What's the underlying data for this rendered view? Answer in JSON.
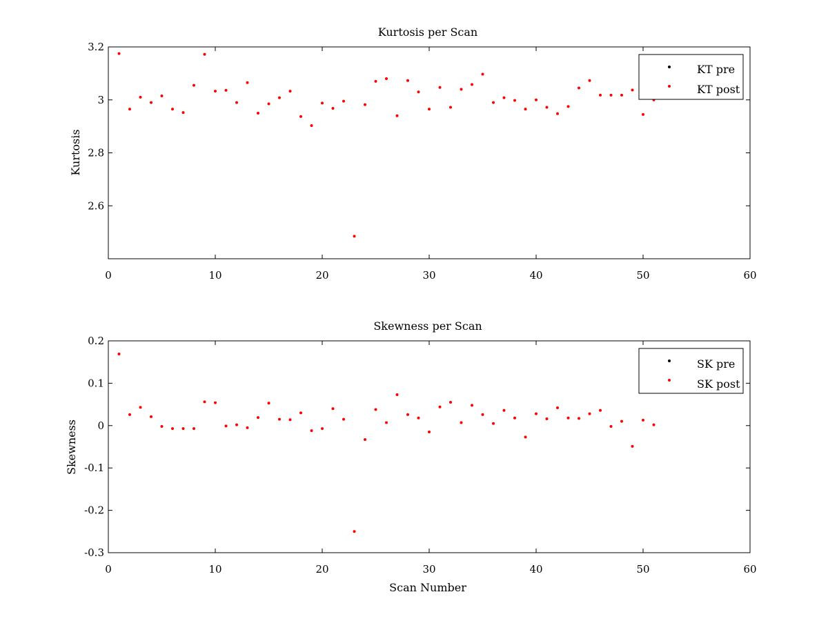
{
  "chart_data": [
    {
      "type": "scatter",
      "title": "Kurtosis per Scan",
      "xlabel": "",
      "ylabel": "Kurtosis",
      "xlim": [
        0,
        60
      ],
      "ylim": [
        2.4,
        3.2
      ],
      "xticks": [
        0,
        10,
        20,
        30,
        40,
        50,
        60
      ],
      "yticks": [
        2.6,
        2.8,
        3,
        3.2
      ],
      "xtick_labels": [
        "0",
        "10",
        "20",
        "30",
        "40",
        "50",
        "60"
      ],
      "ytick_labels": [
        "2.6",
        "2.8",
        "3",
        "3.2"
      ],
      "grid": false,
      "legend": "top-right",
      "series": [
        {
          "name": "KT pre",
          "color": "#000000",
          "x": [],
          "y": []
        },
        {
          "name": "KT post",
          "color": "#ff0000",
          "x": [
            1,
            2,
            3,
            4,
            5,
            6,
            7,
            8,
            9,
            10,
            11,
            12,
            13,
            14,
            15,
            16,
            17,
            18,
            19,
            20,
            21,
            22,
            23,
            24,
            25,
            26,
            27,
            28,
            29,
            30,
            31,
            32,
            33,
            34,
            35,
            36,
            37,
            38,
            39,
            40,
            41,
            42,
            43,
            44,
            45,
            46,
            47,
            48,
            49,
            50,
            51
          ],
          "y": [
            3.175,
            2.965,
            3.01,
            2.99,
            3.015,
            2.965,
            2.952,
            3.055,
            3.172,
            3.033,
            3.036,
            2.99,
            3.065,
            2.95,
            2.985,
            3.008,
            3.033,
            2.937,
            2.903,
            2.988,
            2.968,
            2.995,
            2.485,
            2.982,
            3.07,
            3.08,
            2.94,
            3.073,
            3.03,
            2.965,
            3.047,
            2.972,
            3.04,
            3.058,
            3.097,
            2.99,
            3.008,
            2.998,
            2.965,
            3.0,
            2.972,
            2.948,
            2.975,
            3.045,
            3.073,
            3.018,
            3.018,
            3.018,
            3.037,
            2.945,
            3.0
          ]
        }
      ]
    },
    {
      "type": "scatter",
      "title": "Skewness per Scan",
      "xlabel": "Scan Number",
      "ylabel": "Skewness",
      "xlim": [
        0,
        60
      ],
      "ylim": [
        -0.3,
        0.2
      ],
      "xticks": [
        0,
        10,
        20,
        30,
        40,
        50,
        60
      ],
      "yticks": [
        -0.3,
        -0.2,
        -0.1,
        0,
        0.1,
        0.2
      ],
      "xtick_labels": [
        "0",
        "10",
        "20",
        "30",
        "40",
        "50",
        "60"
      ],
      "ytick_labels": [
        "-0.3",
        "-0.2",
        "-0.1",
        "0",
        "0.1",
        "0.2"
      ],
      "grid": false,
      "legend": "top-right",
      "series": [
        {
          "name": "SK pre",
          "color": "#000000",
          "x": [],
          "y": []
        },
        {
          "name": "SK post",
          "color": "#ff0000",
          "x": [
            1,
            2,
            3,
            4,
            5,
            6,
            7,
            8,
            9,
            10,
            11,
            12,
            13,
            14,
            15,
            16,
            17,
            18,
            19,
            20,
            21,
            22,
            23,
            24,
            25,
            26,
            27,
            28,
            29,
            30,
            31,
            32,
            33,
            34,
            35,
            36,
            37,
            38,
            39,
            40,
            41,
            42,
            43,
            44,
            45,
            46,
            47,
            48,
            49,
            50,
            51
          ],
          "y": [
            0.169,
            0.026,
            0.043,
            0.021,
            -0.002,
            -0.007,
            -0.007,
            -0.007,
            0.056,
            0.054,
            -0.001,
            0.002,
            -0.005,
            0.019,
            0.053,
            0.015,
            0.014,
            0.03,
            -0.012,
            -0.007,
            0.04,
            0.015,
            -0.25,
            -0.033,
            0.038,
            0.007,
            0.073,
            0.026,
            0.018,
            -0.015,
            0.044,
            0.055,
            0.007,
            0.048,
            0.026,
            0.005,
            0.036,
            0.018,
            -0.027,
            0.028,
            0.016,
            0.042,
            0.018,
            0.017,
            0.028,
            0.036,
            -0.002,
            0.01,
            -0.049,
            0.013,
            0.002
          ]
        }
      ]
    }
  ]
}
